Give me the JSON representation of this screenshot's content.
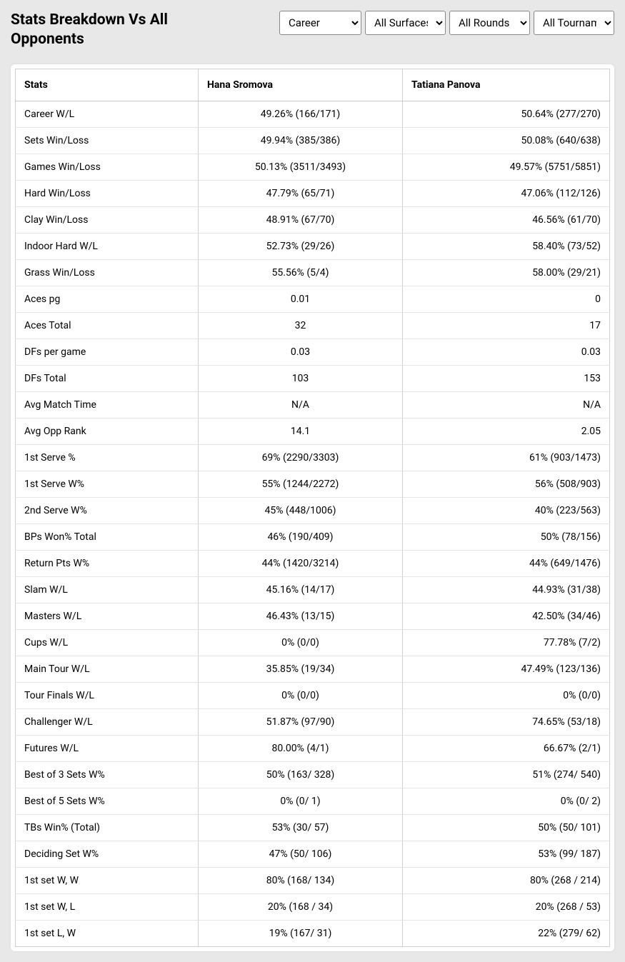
{
  "title": "Stats Breakdown Vs All Opponents",
  "filters": {
    "career": "Career",
    "surfaces": "All Surfaces",
    "rounds": "All Rounds",
    "tournaments": "All Tournaments"
  },
  "columns": {
    "stats": "Stats",
    "player1": "Hana Sromova",
    "player2": "Tatiana Panova"
  },
  "rows": [
    {
      "stat": "Career W/L",
      "p1": "49.26% (166/171)",
      "p2": "50.64% (277/270)"
    },
    {
      "stat": "Sets Win/Loss",
      "p1": "49.94% (385/386)",
      "p2": "50.08% (640/638)"
    },
    {
      "stat": "Games Win/Loss",
      "p1": "50.13% (3511/3493)",
      "p2": "49.57% (5751/5851)"
    },
    {
      "stat": "Hard Win/Loss",
      "p1": "47.79% (65/71)",
      "p2": "47.06% (112/126)"
    },
    {
      "stat": "Clay Win/Loss",
      "p1": "48.91% (67/70)",
      "p2": "46.56% (61/70)"
    },
    {
      "stat": "Indoor Hard W/L",
      "p1": "52.73% (29/26)",
      "p2": "58.40% (73/52)"
    },
    {
      "stat": "Grass Win/Loss",
      "p1": "55.56% (5/4)",
      "p2": "58.00% (29/21)"
    },
    {
      "stat": "Aces pg",
      "p1": "0.01",
      "p2": "0"
    },
    {
      "stat": "Aces Total",
      "p1": "32",
      "p2": "17"
    },
    {
      "stat": "DFs per game",
      "p1": "0.03",
      "p2": "0.03"
    },
    {
      "stat": "DFs Total",
      "p1": "103",
      "p2": "153"
    },
    {
      "stat": "Avg Match Time",
      "p1": "N/A",
      "p2": "N/A"
    },
    {
      "stat": "Avg Opp Rank",
      "p1": "14.1",
      "p2": "2.05"
    },
    {
      "stat": "1st Serve %",
      "p1": "69% (2290/3303)",
      "p2": "61% (903/1473)"
    },
    {
      "stat": "1st Serve W%",
      "p1": "55% (1244/2272)",
      "p2": "56% (508/903)"
    },
    {
      "stat": "2nd Serve W%",
      "p1": "45% (448/1006)",
      "p2": "40% (223/563)"
    },
    {
      "stat": "BPs Won% Total",
      "p1": "46% (190/409)",
      "p2": "50% (78/156)"
    },
    {
      "stat": "Return Pts W%",
      "p1": "44% (1420/3214)",
      "p2": "44% (649/1476)"
    },
    {
      "stat": "Slam W/L",
      "p1": "45.16% (14/17)",
      "p2": "44.93% (31/38)"
    },
    {
      "stat": "Masters W/L",
      "p1": "46.43% (13/15)",
      "p2": "42.50% (34/46)"
    },
    {
      "stat": "Cups W/L",
      "p1": "0% (0/0)",
      "p2": "77.78% (7/2)"
    },
    {
      "stat": "Main Tour W/L",
      "p1": "35.85% (19/34)",
      "p2": "47.49% (123/136)"
    },
    {
      "stat": "Tour Finals W/L",
      "p1": "0% (0/0)",
      "p2": "0% (0/0)"
    },
    {
      "stat": "Challenger W/L",
      "p1": "51.87% (97/90)",
      "p2": "74.65% (53/18)"
    },
    {
      "stat": "Futures W/L",
      "p1": "80.00% (4/1)",
      "p2": "66.67% (2/1)"
    },
    {
      "stat": "Best of 3 Sets W%",
      "p1": "50% (163/ 328)",
      "p2": "51% (274/ 540)"
    },
    {
      "stat": "Best of 5 Sets W%",
      "p1": "0% (0/ 1)",
      "p2": "0% (0/ 2)"
    },
    {
      "stat": "TBs Win% (Total)",
      "p1": "53% (30/ 57)",
      "p2": "50% (50/ 101)"
    },
    {
      "stat": "Deciding Set W%",
      "p1": "47% (50/ 106)",
      "p2": "53% (99/ 187)"
    },
    {
      "stat": "1st set W, W",
      "p1": "80% (168/ 134)",
      "p2": "80% (268 / 214)"
    },
    {
      "stat": "1st set W, L",
      "p1": "20% (168 / 34)",
      "p2": "20% (268 / 53)"
    },
    {
      "stat": "1st set L, W",
      "p1": "19% (167/ 31)",
      "p2": "22% (279/ 62)"
    }
  ]
}
